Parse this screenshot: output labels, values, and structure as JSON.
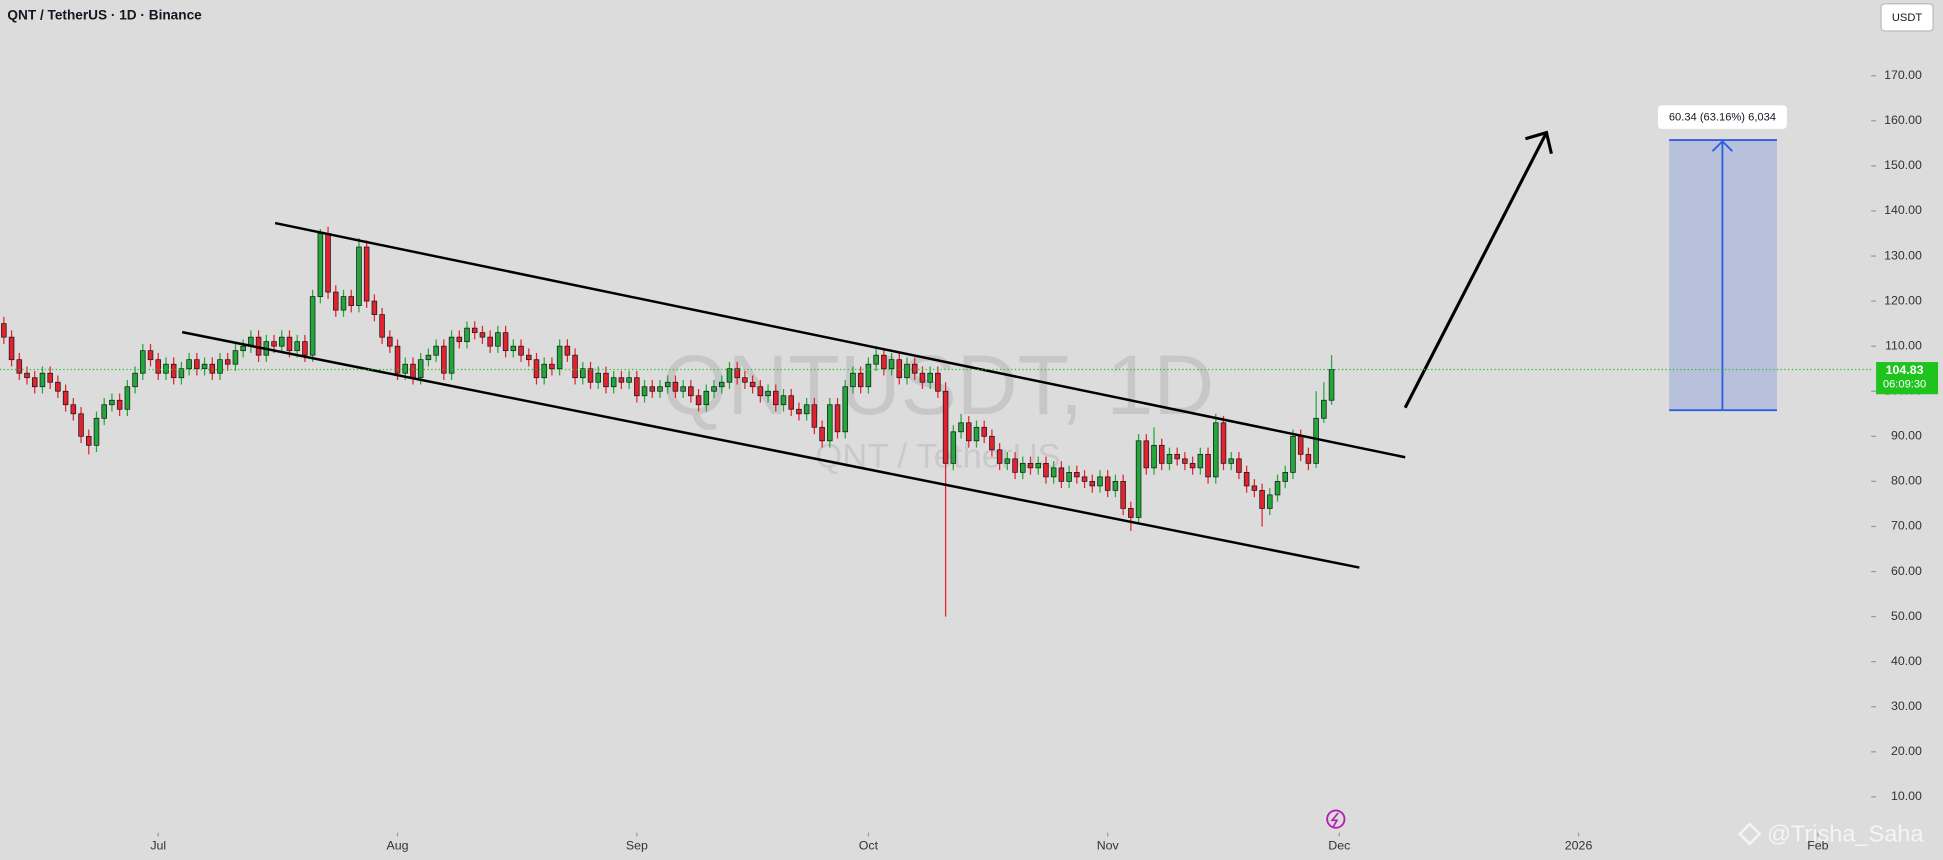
{
  "header": {
    "title": "QNT / TetherUS · 1D · Binance",
    "currency": "USDT"
  },
  "chart_data": {
    "type": "candlestick",
    "watermark": "QNTUSDT, 1D",
    "watermark_subtitle": "QNT / TetherUS",
    "open": [
      115,
      112,
      107,
      104,
      103,
      101,
      104,
      102,
      100,
      97,
      95,
      90,
      88,
      94,
      97,
      98,
      96,
      101,
      104,
      109,
      107,
      104,
      106,
      103,
      105,
      107,
      105,
      106,
      104,
      107,
      106,
      109,
      110,
      112,
      108,
      111,
      110,
      112,
      109,
      111,
      108,
      121,
      135,
      122,
      118,
      121,
      119,
      132,
      120,
      117,
      112,
      110,
      104,
      106,
      103,
      107,
      108,
      110,
      104,
      112,
      111,
      114,
      113,
      112,
      110,
      113,
      109,
      110,
      108,
      107,
      103,
      106,
      105,
      110,
      108,
      103,
      105,
      102,
      104,
      101,
      103,
      102,
      103,
      99,
      101,
      100,
      101,
      102,
      100,
      101,
      99,
      97,
      100,
      101,
      102,
      105,
      103,
      102,
      101,
      99,
      100,
      97,
      99,
      96,
      95,
      97,
      92,
      89,
      97,
      91,
      101,
      104,
      101,
      106,
      108,
      105,
      107,
      103,
      106,
      104,
      102,
      104,
      100,
      84,
      91,
      93,
      89,
      92,
      90,
      87,
      84,
      85,
      82,
      84,
      83,
      84,
      81,
      83,
      80,
      82,
      81,
      80,
      79,
      81,
      78,
      80,
      74,
      72,
      89,
      83,
      88,
      84,
      86,
      85,
      84,
      83,
      86,
      81,
      93,
      84,
      85,
      82,
      79,
      78,
      74,
      77,
      80,
      82,
      90,
      86,
      84,
      94,
      98
    ],
    "high": [
      116.5,
      113.5,
      108.5,
      105.5,
      104.5,
      105.5,
      105.5,
      103.5,
      101.5,
      98.5,
      96.5,
      91.5,
      95.5,
      98.5,
      99.5,
      99.5,
      102.5,
      105.5,
      110.5,
      110.5,
      108.5,
      107.5,
      107.5,
      106.5,
      108.5,
      108.5,
      107.5,
      107.5,
      108.5,
      108.5,
      110.5,
      111.5,
      113.5,
      113.5,
      112.5,
      112.5,
      113.5,
      113.5,
      112.5,
      112.5,
      122.5,
      136,
      136.5,
      123.5,
      122.5,
      122.5,
      134,
      133.5,
      121.5,
      118.5,
      113.5,
      111.5,
      107.5,
      107.5,
      108.5,
      109.5,
      111.5,
      111.5,
      113.5,
      113.5,
      115.5,
      115.5,
      114.5,
      113.5,
      114.5,
      114.5,
      111.5,
      111.5,
      109.5,
      108.5,
      107.5,
      107.5,
      111.5,
      111.5,
      109.5,
      106.5,
      106.5,
      105.5,
      105.5,
      104.5,
      104.5,
      104.5,
      104.5,
      102.5,
      102.5,
      102.5,
      103.5,
      103.5,
      102.5,
      102.5,
      100.5,
      101.5,
      102.5,
      103.5,
      106.5,
      106.5,
      104.5,
      103.5,
      102.5,
      101.5,
      101.5,
      100.5,
      100.5,
      97.5,
      98.5,
      98.5,
      93.5,
      98.5,
      98.5,
      102.5,
      105.5,
      105.5,
      107.5,
      110,
      109.5,
      108.5,
      108.5,
      107.5,
      107.5,
      105.5,
      105.5,
      105.5,
      102,
      92.5,
      95,
      94.5,
      93.5,
      93.5,
      91.5,
      88.5,
      86.5,
      86.5,
      85.5,
      85.5,
      85.5,
      85.5,
      84.5,
      84.5,
      83.5,
      83.5,
      82.5,
      81.5,
      82.5,
      82.5,
      81.5,
      81.5,
      75.5,
      90.5,
      90.5,
      92,
      89.5,
      87.5,
      87.5,
      86.5,
      85.5,
      87.5,
      87.5,
      95,
      94.5,
      86.5,
      86.5,
      83.5,
      80.5,
      79.5,
      78.5,
      81.5,
      83.5,
      91.5,
      91.5,
      87.5,
      100,
      102,
      108
    ],
    "low": [
      110.5,
      105.5,
      102.5,
      101.5,
      99.5,
      99.5,
      100.5,
      98.5,
      95.5,
      93.5,
      88.5,
      86,
      86.5,
      92.5,
      95.5,
      94.5,
      94.5,
      99.5,
      102.5,
      105.5,
      102.5,
      102.5,
      101.5,
      101.5,
      103.5,
      103.5,
      103.5,
      102.5,
      102.5,
      104.5,
      104.5,
      107.5,
      108.5,
      106.5,
      106.5,
      108.5,
      108.5,
      107.5,
      107.5,
      106.5,
      106.5,
      119.5,
      120.5,
      116.5,
      116.5,
      117.5,
      117.5,
      118.5,
      115.5,
      110.5,
      108.5,
      102.5,
      102.5,
      101.5,
      101.5,
      105.5,
      106.5,
      102.5,
      102.5,
      109.5,
      109.5,
      111.5,
      110.5,
      108.5,
      108.5,
      107.5,
      107.5,
      106.5,
      105.5,
      101.5,
      101.5,
      103.5,
      103.5,
      106.5,
      101.5,
      101.5,
      100.5,
      100.5,
      99.5,
      99.5,
      100.5,
      100.5,
      97.5,
      97.5,
      98.5,
      98.5,
      99.5,
      98.5,
      98.5,
      97.5,
      95.5,
      95.5,
      98.5,
      99.5,
      100.5,
      101.5,
      100.5,
      99.5,
      97.5,
      97.5,
      95.5,
      95.5,
      94.5,
      93.5,
      93.5,
      90.5,
      87.5,
      87.5,
      89.5,
      89.5,
      99.5,
      99.5,
      99.5,
      104.5,
      103.5,
      103.5,
      101.5,
      101.5,
      102.5,
      100.5,
      100.5,
      98.5,
      50,
      82.5,
      89.5,
      87.5,
      87.5,
      88.5,
      85.5,
      82.5,
      82.5,
      80.5,
      80.5,
      81.5,
      81.5,
      79.5,
      79.5,
      78.5,
      78.5,
      79.5,
      78.5,
      77.5,
      77.5,
      76.5,
      76.5,
      72.5,
      69,
      70.5,
      81.5,
      81.5,
      82.5,
      82.5,
      83.5,
      82.5,
      81.5,
      81.5,
      79.5,
      79.5,
      82.5,
      82.5,
      80.5,
      77.5,
      76.5,
      70,
      72.5,
      75.5,
      78.5,
      80.5,
      84.5,
      82.5,
      83,
      93,
      97
    ],
    "close": [
      112,
      107,
      104,
      103,
      101,
      104,
      102,
      100,
      97,
      95,
      90,
      88,
      94,
      97,
      98,
      96,
      101,
      104,
      109,
      107,
      104,
      106,
      103,
      105,
      107,
      105,
      106,
      104,
      107,
      106,
      109,
      110,
      112,
      108,
      111,
      110,
      112,
      109,
      111,
      108,
      121,
      135,
      122,
      118,
      121,
      119,
      132,
      120,
      117,
      112,
      110,
      104,
      106,
      103,
      107,
      108,
      110,
      104,
      112,
      111,
      114,
      113,
      112,
      110,
      113,
      109,
      110,
      108,
      107,
      103,
      106,
      105,
      110,
      108,
      103,
      105,
      102,
      104,
      101,
      103,
      102,
      103,
      99,
      101,
      100,
      101,
      102,
      100,
      101,
      99,
      97,
      100,
      101,
      102,
      105,
      103,
      102,
      101,
      99,
      100,
      97,
      99,
      96,
      95,
      97,
      92,
      89,
      97,
      91,
      101,
      104,
      101,
      106,
      108,
      105,
      107,
      103,
      106,
      104,
      102,
      104,
      100,
      84,
      91,
      93,
      89,
      92,
      90,
      87,
      84,
      85,
      82,
      84,
      83,
      84,
      81,
      83,
      80,
      82,
      81,
      80,
      79,
      81,
      78,
      80,
      74,
      72,
      89,
      83,
      88,
      84,
      86,
      85,
      84,
      83,
      86,
      81,
      93,
      84,
      85,
      82,
      79,
      78,
      74,
      77,
      80,
      82,
      90,
      86,
      84,
      94,
      98,
      104.83
    ],
    "colors": {
      "up": "#22a83a",
      "down": "#e3212f",
      "last": "#1ec31e"
    },
    "xlim": [
      -0.5,
      241.9
    ],
    "xticks": [
      {
        "value": 20,
        "label": "Jul"
      },
      {
        "value": 51,
        "label": "Aug"
      },
      {
        "value": 82,
        "label": "Sep"
      },
      {
        "value": 112,
        "label": "Oct"
      },
      {
        "value": 143,
        "label": "Nov"
      },
      {
        "value": 173,
        "label": "Dec"
      },
      {
        "value": 204,
        "label": "2026"
      },
      {
        "value": 235,
        "label": "Feb"
      }
    ],
    "ylim": [
      2.6,
      186.8
    ],
    "yticks": [
      {
        "value": 10,
        "label": "10.00"
      },
      {
        "value": 20,
        "label": "20.00"
      },
      {
        "value": 30,
        "label": "30.00"
      },
      {
        "value": 40,
        "label": "40.00"
      },
      {
        "value": 50,
        "label": "50.00"
      },
      {
        "value": 60,
        "label": "60.00"
      },
      {
        "value": 70,
        "label": "70.00"
      },
      {
        "value": 80,
        "label": "80.00"
      },
      {
        "value": 90,
        "label": "90.00"
      },
      {
        "value": 100,
        "label": "100.00"
      },
      {
        "value": 110,
        "label": "110.00"
      },
      {
        "value": 120,
        "label": "120.00"
      },
      {
        "value": 130,
        "label": "130.00"
      },
      {
        "value": 140,
        "label": "140.00"
      },
      {
        "value": 150,
        "label": "150.00"
      },
      {
        "value": 160,
        "label": "160.00"
      },
      {
        "value": 170,
        "label": "170.00"
      }
    ],
    "countdown": "06:09:30",
    "measure_label": "60.34 (63.16%) 6,034"
  },
  "credit": "@Trisha_Saha"
}
